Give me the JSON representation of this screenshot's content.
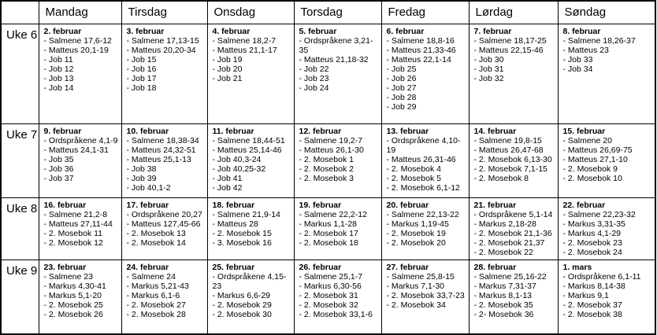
{
  "colors": {
    "border": "#000000",
    "text": "#000000",
    "background": "#ffffff"
  },
  "table": {
    "corner_label": "",
    "day_headers": [
      "Mandag",
      "Tirsdag",
      "Onsdag",
      "Torsdag",
      "Fredag",
      "Lørdag",
      "Søndag"
    ],
    "weeks": [
      {
        "label": "Uke 6",
        "days": [
          {
            "date": "2. februar",
            "readings": [
              "- Salmene 17,6-12",
              "- Matteus 20,1-19",
              "- Job 11",
              "- Job 12",
              "- Job 13",
              "- Job 14"
            ]
          },
          {
            "date": "3. februar",
            "readings": [
              "- Salmene 17,13-15",
              "- Matteus 20,20-34",
              "- Job 15",
              "- Job 16",
              "- Job 17",
              "- Job 18"
            ]
          },
          {
            "date": "4. februar",
            "readings": [
              "- Salmene 18,2-7",
              "- Matteus 21,1-17",
              "- Job 19",
              "- Job 20",
              "- Job 21"
            ]
          },
          {
            "date": "5. februar",
            "readings": [
              "- Ordspråkene 3,21-35",
              "- Matteus 21,18-32",
              "- Job 22",
              "- Job 23",
              "- Job 24"
            ]
          },
          {
            "date": "6. februar",
            "readings": [
              "- Salmene 18,8-16",
              "- Matteus 21,33-46",
              "- Matteus 22,1-14",
              "- Job 25",
              "- Job 26",
              "- Job 27",
              "- Job 28",
              "- Job 29"
            ]
          },
          {
            "date": "7. februar",
            "readings": [
              "- Salmene 18,17-25",
              "- Matteus 22,15-46",
              "- Job 30",
              "- Job 31",
              "- Job 32"
            ]
          },
          {
            "date": "8. februar",
            "readings": [
              "- Salmene 18,26-37",
              "- Matteus 23",
              "- Job 33",
              "- Job 34"
            ]
          }
        ]
      },
      {
        "label": "Uke 7",
        "days": [
          {
            "date": "9. februar",
            "readings": [
              "- Ordspråkene 4,1-9",
              "- Matteus 24,1-31",
              "- Job 35",
              "- Job 36",
              "- Job 37"
            ]
          },
          {
            "date": "10. februar",
            "readings": [
              "- Salmene 18,38-34",
              "- Matteus 24,32-51",
              "- Matteus 25,1-13",
              "- Job 38",
              "- Job 39",
              "- Job 40,1-2"
            ]
          },
          {
            "date": "11. februar",
            "readings": [
              "- Salmene 18,44-51",
              "- Matteus 25,14-46",
              "- Job 40,3-24",
              "- Job 40,25-32",
              "- Job 41",
              "- Job 42"
            ]
          },
          {
            "date": "12. februar",
            "readings": [
              "- Salmene 19,2-7",
              "- Matteus 26,1-30",
              "- 2. Mosebok 1",
              "- 2. Mosebok 2",
              "- 2. Mosebok 3"
            ]
          },
          {
            "date": "13. februar",
            "readings": [
              "- Ordspråkene 4,10-19",
              "- Matteus 26,31-46",
              "- 2. Mosebok 4",
              "- 2. Mosebok 5",
              "- 2. Mosebok 6,1-12"
            ]
          },
          {
            "date": "14. februar",
            "readings": [
              "- Salmene 19,8-15",
              "- Matteus 26,47-68",
              "- 2. Mosebok 6,13-30",
              "- 2. Mosebok 7,1-15",
              "- 2. Mosebok 8"
            ]
          },
          {
            "date": "15. februar",
            "readings": [
              "- Salmene 20",
              "- Matteus 26,69-75",
              "- Matteus 27,1-10",
              "- 2. Mosebok 9",
              "- 2. Mosebok 10"
            ]
          }
        ]
      },
      {
        "label": "Uke 8",
        "days": [
          {
            "date": "16. februar",
            "readings": [
              "- Salmene 21,2-8",
              "- Matteus 27,11-44",
              "- 2. Mosebok 11",
              "- 2. Mosebok 12"
            ]
          },
          {
            "date": "17. februar",
            "readings": [
              "- Ordspråkene 20,27",
              "- Matteus 127,45-66",
              "- 2. Mosebok 13",
              "- 2. Mosebok 14"
            ]
          },
          {
            "date": "18. februar",
            "readings": [
              "- Salmene 21,9-14",
              "- Matteus 28",
              "- 2. Mosebok 15",
              "- 3. Mosebok 16"
            ]
          },
          {
            "date": "19. februar",
            "readings": [
              "- Salmene 22,2-12",
              "- Markus 1,1-28",
              "- 2. Mosebok 17",
              "- 2. Mosebok 18"
            ]
          },
          {
            "date": "20. februar",
            "readings": [
              "- Salmene 22,13-22",
              "- Markus 1,19-45",
              "- 2. Mosebok 19",
              "- 2. Mosebok 20"
            ]
          },
          {
            "date": "21. februar",
            "readings": [
              "- Ordspråkene 5,1-14",
              "- Markus 2,18-28",
              "- 2. Mosebok 21,1-36",
              "- 2. Mosebok 21,37",
              "- 2. Mosebok 22"
            ]
          },
          {
            "date": "22. februar",
            "readings": [
              "- Salmene 22,23-32",
              "- Markus 3,31-35",
              "- Markus 4,1-29",
              "- 2. Mosebok 23",
              "- 2. Mosebok 24"
            ]
          }
        ]
      },
      {
        "label": "Uke 9",
        "days": [
          {
            "date": "23. februar",
            "readings": [
              "- Salmene 23",
              "- Markus 4,30-41",
              "- Markus 5,1-20",
              "- 2. Mosebok 25",
              "- 2. Mosebok 26"
            ]
          },
          {
            "date": "24. februar",
            "readings": [
              "- Salmene 24",
              "- Markus 5,21-43",
              "- Markus 6,1-6",
              "- 2. Mosebok 27",
              "- 2. Mosebok 28"
            ]
          },
          {
            "date": "25. februar",
            "readings": [
              "- Ordspråkene 4,15-23",
              "- Markus 6,6-29",
              "- 2. Mosebok 29",
              "- 2. Mosebok 30"
            ]
          },
          {
            "date": "26. februar",
            "readings": [
              "- Salmene 25,1-7",
              "- Markus 6,30-56",
              "- 2. Mosebok 31",
              "- 2. Mosebok 32",
              "- 2. Mosebok 33,1-6"
            ]
          },
          {
            "date": "27. februar",
            "readings": [
              "- Salmene 25,8-15",
              "- Markus 7,1-30",
              "- 2. Mosebok 33,7-23",
              "- 2. Mosebok 34"
            ]
          },
          {
            "date": "28. februar",
            "readings": [
              "- Salmene 25,16-22",
              "- Markus 7,31-37",
              "- Markus 8,1-13",
              "- 2. Mosebok 35",
              "- 2- Mosebok 36"
            ]
          },
          {
            "date": "1. mars",
            "readings": [
              "- Ordspråkene 6,1-11",
              "- Markus 8,14-38",
              "- Markus 9,1",
              "- 2. Mosebok 37",
              "- 2. Mosebok 38"
            ]
          }
        ]
      }
    ]
  }
}
